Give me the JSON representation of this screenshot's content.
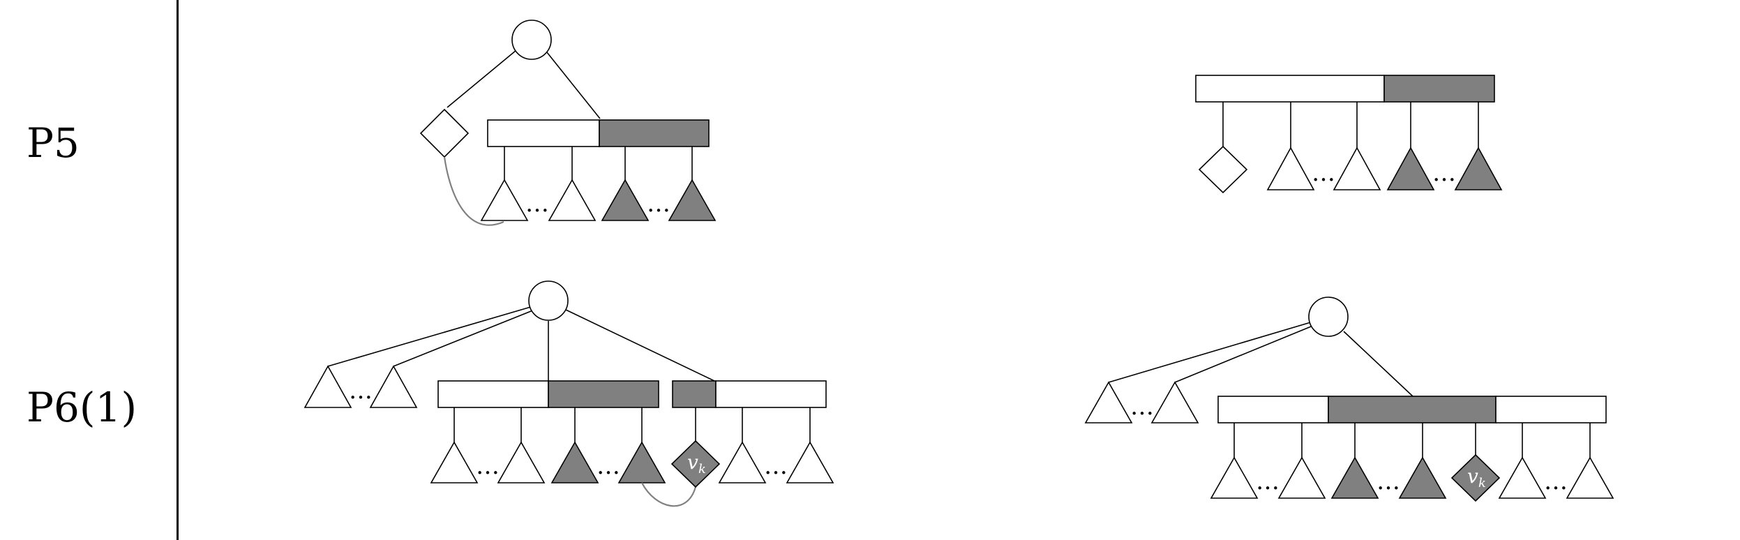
{
  "rows": [
    {
      "label": "P5"
    },
    {
      "label": "P6(1)"
    }
  ],
  "node_label": "v",
  "node_label_sub": "k",
  "ellipsis": "…",
  "colors": {
    "stroke": "#000000",
    "fill_dark": "#808080",
    "fill_light": "#ffffff",
    "curve": "#808080"
  }
}
